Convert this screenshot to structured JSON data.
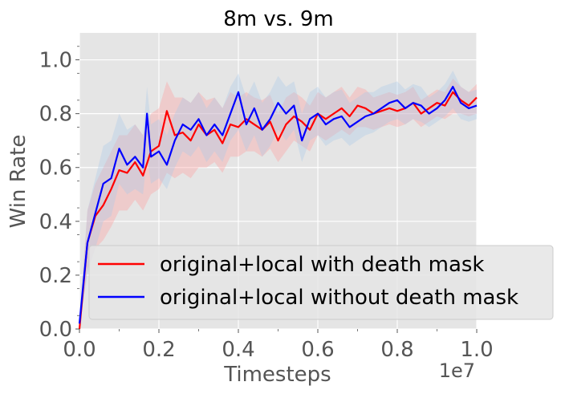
{
  "chart_data": {
    "type": "line",
    "title": "8m vs. 9m",
    "xlabel": "Timesteps",
    "ylabel": "Win Rate",
    "x_offset_label": "1e7",
    "xlim": [
      0.0,
      1.0
    ],
    "ylim": [
      0.0,
      1.1
    ],
    "x_ticks": [
      "0.0",
      "0.2",
      "0.4",
      "0.6",
      "0.8",
      "1.0"
    ],
    "y_ticks": [
      "0.0",
      "0.2",
      "0.4",
      "0.6",
      "0.8",
      "1.0"
    ],
    "grid": true,
    "legend_position": "lower right",
    "background": "#e5e5e5",
    "series": [
      {
        "name": "original+local with death mask",
        "color": "#ff0000",
        "band_color": "#ff9b9b",
        "x": [
          0.0,
          0.02,
          0.04,
          0.06,
          0.08,
          0.1,
          0.12,
          0.14,
          0.16,
          0.18,
          0.2,
          0.22,
          0.24,
          0.26,
          0.28,
          0.3,
          0.32,
          0.34,
          0.36,
          0.38,
          0.4,
          0.42,
          0.44,
          0.46,
          0.48,
          0.5,
          0.52,
          0.54,
          0.56,
          0.58,
          0.6,
          0.62,
          0.64,
          0.66,
          0.68,
          0.7,
          0.72,
          0.74,
          0.76,
          0.78,
          0.8,
          0.82,
          0.84,
          0.86,
          0.88,
          0.9,
          0.92,
          0.94,
          0.96,
          0.98,
          1.0
        ],
        "y": [
          0.0,
          0.32,
          0.42,
          0.46,
          0.52,
          0.59,
          0.58,
          0.62,
          0.57,
          0.66,
          0.68,
          0.81,
          0.72,
          0.73,
          0.7,
          0.76,
          0.72,
          0.74,
          0.69,
          0.76,
          0.75,
          0.78,
          0.76,
          0.74,
          0.77,
          0.7,
          0.76,
          0.79,
          0.77,
          0.74,
          0.8,
          0.78,
          0.8,
          0.82,
          0.79,
          0.83,
          0.82,
          0.8,
          0.81,
          0.82,
          0.81,
          0.82,
          0.84,
          0.8,
          0.82,
          0.84,
          0.83,
          0.88,
          0.85,
          0.83,
          0.86
        ],
        "band_lower": [
          0.0,
          0.22,
          0.3,
          0.33,
          0.38,
          0.44,
          0.44,
          0.48,
          0.44,
          0.5,
          0.52,
          0.58,
          0.56,
          0.58,
          0.56,
          0.6,
          0.6,
          0.62,
          0.58,
          0.64,
          0.64,
          0.66,
          0.66,
          0.64,
          0.67,
          0.62,
          0.66,
          0.7,
          0.68,
          0.66,
          0.72,
          0.7,
          0.72,
          0.74,
          0.72,
          0.75,
          0.75,
          0.74,
          0.75,
          0.76,
          0.75,
          0.76,
          0.78,
          0.75,
          0.77,
          0.79,
          0.78,
          0.8,
          0.8,
          0.79,
          0.8
        ],
        "band_upper": [
          0.02,
          0.44,
          0.54,
          0.6,
          0.66,
          0.72,
          0.72,
          0.76,
          0.72,
          0.8,
          0.82,
          0.92,
          0.86,
          0.86,
          0.84,
          0.88,
          0.85,
          0.86,
          0.82,
          0.88,
          0.86,
          0.88,
          0.86,
          0.85,
          0.87,
          0.8,
          0.86,
          0.88,
          0.86,
          0.83,
          0.88,
          0.86,
          0.88,
          0.9,
          0.86,
          0.9,
          0.89,
          0.86,
          0.87,
          0.88,
          0.87,
          0.88,
          0.9,
          0.85,
          0.87,
          0.89,
          0.88,
          0.93,
          0.9,
          0.88,
          0.91
        ]
      },
      {
        "name": "original+local without death mask",
        "color": "#0000ff",
        "band_color": "#a8c8e8",
        "x": [
          0.0,
          0.02,
          0.04,
          0.06,
          0.08,
          0.1,
          0.12,
          0.14,
          0.16,
          0.17,
          0.18,
          0.2,
          0.22,
          0.24,
          0.26,
          0.28,
          0.3,
          0.32,
          0.34,
          0.36,
          0.38,
          0.4,
          0.42,
          0.44,
          0.46,
          0.48,
          0.5,
          0.52,
          0.54,
          0.56,
          0.58,
          0.6,
          0.62,
          0.64,
          0.66,
          0.68,
          0.7,
          0.72,
          0.74,
          0.76,
          0.78,
          0.8,
          0.82,
          0.84,
          0.86,
          0.88,
          0.9,
          0.92,
          0.94,
          0.96,
          0.98,
          1.0
        ],
        "y": [
          0.02,
          0.32,
          0.43,
          0.54,
          0.56,
          0.67,
          0.61,
          0.64,
          0.6,
          0.8,
          0.64,
          0.66,
          0.61,
          0.7,
          0.76,
          0.74,
          0.78,
          0.72,
          0.76,
          0.72,
          0.8,
          0.88,
          0.76,
          0.82,
          0.74,
          0.78,
          0.84,
          0.8,
          0.83,
          0.7,
          0.78,
          0.8,
          0.76,
          0.78,
          0.79,
          0.75,
          0.77,
          0.79,
          0.8,
          0.82,
          0.84,
          0.85,
          0.82,
          0.84,
          0.83,
          0.8,
          0.82,
          0.85,
          0.9,
          0.84,
          0.82,
          0.83
        ],
        "band_lower": [
          0.0,
          0.2,
          0.3,
          0.4,
          0.42,
          0.54,
          0.5,
          0.52,
          0.5,
          0.64,
          0.54,
          0.56,
          0.52,
          0.6,
          0.66,
          0.64,
          0.68,
          0.62,
          0.66,
          0.62,
          0.7,
          0.74,
          0.66,
          0.72,
          0.64,
          0.68,
          0.74,
          0.7,
          0.74,
          0.62,
          0.7,
          0.72,
          0.68,
          0.7,
          0.71,
          0.68,
          0.7,
          0.72,
          0.73,
          0.75,
          0.77,
          0.78,
          0.76,
          0.78,
          0.77,
          0.75,
          0.77,
          0.79,
          0.82,
          0.78,
          0.77,
          0.78
        ],
        "band_upper": [
          0.04,
          0.44,
          0.56,
          0.68,
          0.7,
          0.8,
          0.74,
          0.76,
          0.72,
          0.9,
          0.76,
          0.78,
          0.72,
          0.8,
          0.86,
          0.84,
          0.88,
          0.82,
          0.86,
          0.82,
          0.9,
          0.95,
          0.86,
          0.92,
          0.84,
          0.88,
          0.94,
          0.9,
          0.92,
          0.8,
          0.88,
          0.9,
          0.86,
          0.88,
          0.89,
          0.84,
          0.86,
          0.88,
          0.88,
          0.9,
          0.91,
          0.92,
          0.89,
          0.91,
          0.9,
          0.86,
          0.88,
          0.91,
          0.96,
          0.9,
          0.88,
          0.89
        ]
      }
    ]
  }
}
